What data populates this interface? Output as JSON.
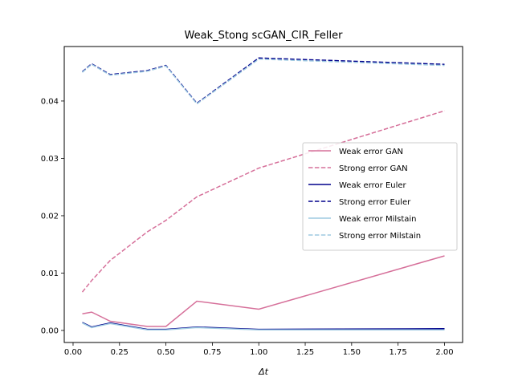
{
  "chart_data": {
    "type": "line",
    "title": "Weak_Stong scGAN_CIR_Feller",
    "xlabel": "Δt",
    "ylabel": "",
    "xlim": [
      -0.0475,
      2.0975
    ],
    "ylim": [
      -0.0021,
      0.0495
    ],
    "xticks": [
      0.0,
      0.25,
      0.5,
      0.75,
      1.0,
      1.25,
      1.5,
      1.75,
      2.0
    ],
    "xtick_labels": [
      "0.00",
      "0.25",
      "0.50",
      "0.75",
      "1.00",
      "1.25",
      "1.50",
      "1.75",
      "2.00"
    ],
    "yticks": [
      0.0,
      0.01,
      0.02,
      0.03,
      0.04
    ],
    "ytick_labels": [
      "0.00",
      "0.01",
      "0.02",
      "0.03",
      "0.04"
    ],
    "grid": false,
    "legend_position": "center-right",
    "x": [
      0.05,
      0.1,
      0.2,
      0.4,
      0.5,
      0.6667,
      1.0,
      2.0
    ],
    "series": [
      {
        "name": "Weak error GAN",
        "color": "#d6709a",
        "dash": "solid",
        "values": [
          0.0029,
          0.0032,
          0.0016,
          0.0007,
          0.0007,
          0.0051,
          0.0037,
          0.013
        ]
      },
      {
        "name": "Strong error GAN",
        "color": "#d6709a",
        "dash": "dashed",
        "values": [
          0.0067,
          0.0087,
          0.0122,
          0.0172,
          0.0192,
          0.0233,
          0.0283,
          0.0383
        ]
      },
      {
        "name": "Weak error Euler",
        "color": "#00008b",
        "dash": "solid",
        "values": [
          0.0014,
          0.0006,
          0.0013,
          0.0002,
          0.0002,
          0.0006,
          0.0002,
          0.0003
        ]
      },
      {
        "name": "Strong error Euler",
        "color": "#00008b",
        "dash": "dashed",
        "values": [
          0.0451,
          0.0465,
          0.0446,
          0.0453,
          0.0462,
          0.0396,
          0.0475,
          0.0464
        ]
      },
      {
        "name": "Weak error Milstain",
        "color": "#9ecae1",
        "dash": "solid",
        "values": [
          0.0013,
          0.0005,
          0.0012,
          0.0001,
          0.0001,
          0.0005,
          0.0001,
          0.0001
        ]
      },
      {
        "name": "Strong error Milstain",
        "color": "#9ecae1",
        "dash": "dashed",
        "values": [
          0.045,
          0.0464,
          0.0445,
          0.0452,
          0.0461,
          0.0395,
          0.0473,
          0.0462
        ]
      }
    ]
  }
}
